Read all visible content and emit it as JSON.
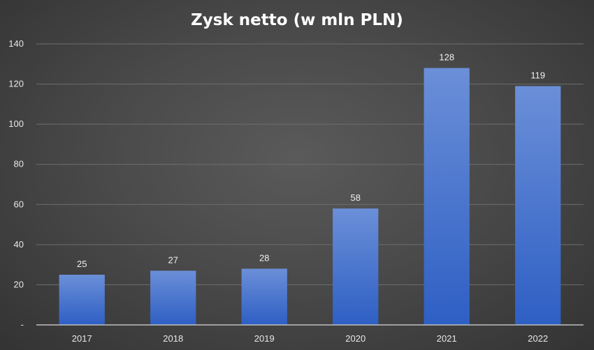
{
  "chart_data": {
    "type": "bar",
    "title": "Zysk netto (w mln PLN)",
    "categories": [
      "2017",
      "2018",
      "2019",
      "2020",
      "2021",
      "2022"
    ],
    "values": [
      25,
      27,
      28,
      58,
      128,
      119
    ],
    "ylim": [
      0,
      140
    ],
    "yticks": [
      0,
      20,
      40,
      60,
      80,
      100,
      120,
      140
    ],
    "ytick_labels": [
      "-",
      "20",
      "40",
      "60",
      "80",
      "100",
      "120",
      "140"
    ],
    "xlabel": "",
    "ylabel": "",
    "grid": true,
    "legend": false,
    "data_labels": true,
    "colors": {
      "bar_top": "#6b8fd8",
      "bar_bottom": "#2e5fc4",
      "gridline": "#6e6e6e",
      "axis": "#bfbfbf",
      "text": "#ffffff"
    }
  }
}
